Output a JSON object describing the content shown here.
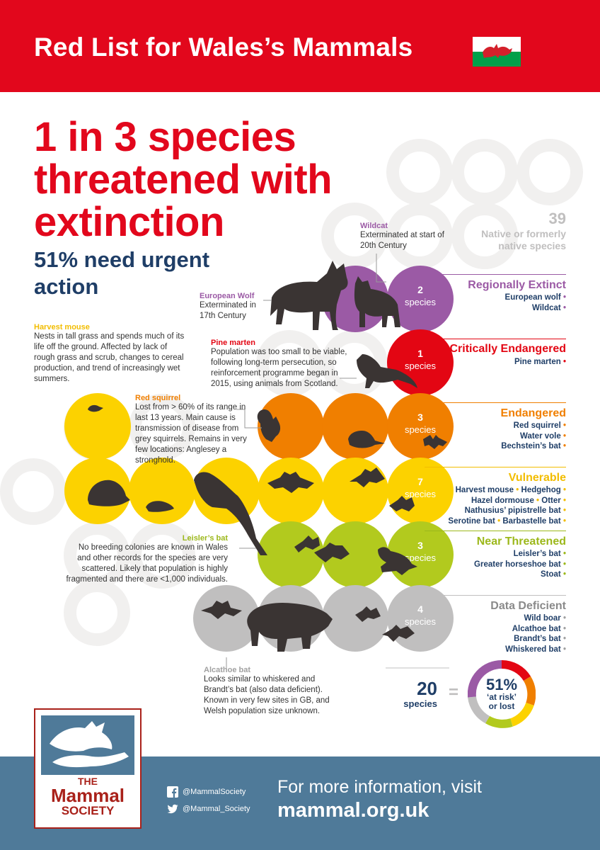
{
  "header": {
    "title": "Red List for Wales’s Mammals"
  },
  "headline": {
    "line1": "1 in 3 species",
    "line2": "threatened with",
    "line3": "extinction"
  },
  "subhead": {
    "line1": "51% need urgent",
    "line2": "action"
  },
  "total": {
    "number": "39",
    "label_line1": "Native or formerly",
    "label_line2": "native species"
  },
  "colors": {
    "red": "#e2071c",
    "purple": "#9b5aa5",
    "crimson": "#e30613",
    "orange": "#f07f00",
    "yellow": "#fcd200",
    "lime": "#b2ca1e",
    "grey": "#c0bfbf",
    "navy": "#1f3e67",
    "footer_blue": "#4f7a99"
  },
  "categories": [
    {
      "count": "2",
      "unit": "species",
      "title": "Regionally Extinct",
      "color": "#9b5aa5",
      "species": [
        "European wolf",
        "Wildcat"
      ]
    },
    {
      "count": "1",
      "unit": "species",
      "title": "Critically Endangered",
      "color": "#e30613",
      "species": [
        "Pine marten"
      ]
    },
    {
      "count": "3",
      "unit": "species",
      "title": "Endangered",
      "color": "#f07f00",
      "species": [
        "Red squirrel",
        "Water vole",
        "Bechstein’s bat"
      ]
    },
    {
      "count": "7",
      "unit": "species",
      "title": "Vulnerable",
      "color": "#f2bd00",
      "species_lines": [
        [
          "Harvest mouse",
          "Hedgehog"
        ],
        [
          "Hazel dormouse",
          "Otter"
        ],
        [
          "Nathusius’ pipistrelle bat"
        ],
        [
          "Serotine bat",
          "Barbastelle bat"
        ]
      ]
    },
    {
      "count": "3",
      "unit": "species",
      "title": "Near Threatened",
      "color": "#9cb81b",
      "species": [
        "Leisler’s bat",
        "Greater horseshoe bat",
        "Stoat"
      ]
    },
    {
      "count": "4",
      "unit": "species",
      "title": "Data Deficient",
      "color": "#8a8a8a",
      "species": [
        "Wild boar",
        "Alcathoe bat",
        "Brandt’s bat",
        "Whiskered bat"
      ]
    }
  ],
  "notes": {
    "wildcat": {
      "title": "Wildcat",
      "body": "Exterminated at start of 20th Century"
    },
    "wolf": {
      "title": "European Wolf",
      "body": "Exterminated in 17th Century"
    },
    "pine_marten": {
      "title": "Pine marten",
      "body": "Population was too small to be viable, following long-term persecution, so reinforcement programme began in 2015, using animals from Scotland."
    },
    "harvest_mouse": {
      "title": "Harvest mouse",
      "body": "Nests in tall grass and spends much of its life off the ground. Affected by lack of rough grass and scrub, changes to cereal production, and trend of increasingly wet summers."
    },
    "red_squirrel": {
      "title": "Red squirrel",
      "body": "Lost from > 60% of its range in last 13 years. Main cause is transmission of disease from grey squirrels. Remains in very few locations: Anglesey a stronghold."
    },
    "leislers_bat": {
      "title": "Leisler’s bat",
      "body": "No breeding colonies are known in Wales and other records for the species are very scattered. Likely that population is highly fragmented and there are <1,000 individuals."
    },
    "alcathoe_bat": {
      "title": "Alcathoe bat",
      "body": "Looks similar to whiskered and Brandt’s bat (also data deficient). Known in very few sites in GB, and Welsh population size unknown."
    }
  },
  "summary": {
    "number": "20",
    "unit": "species",
    "equals": "=",
    "percent": "51%",
    "line1": "‘at risk’",
    "line2": "or lost"
  },
  "logo": {
    "line1": "THE",
    "line2": "Mammal",
    "line3": "SOCIETY"
  },
  "footer": {
    "facebook": "@MammalSociety",
    "twitter": "@Mammal_Society",
    "more_info": "For more information, visit",
    "url": "mammal.org.uk"
  }
}
